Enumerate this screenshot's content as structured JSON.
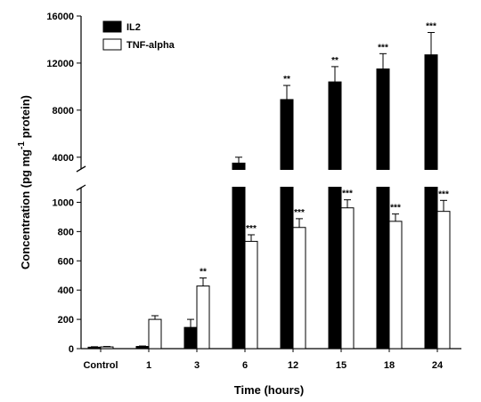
{
  "chart_data": {
    "type": "bar",
    "xlabel": "Time (hours)",
    "ylabel": "Concentration (pg mg",
    "ylabel_sup": "-1",
    "ylabel_end": " protein)",
    "categories": [
      "Control",
      "1",
      "3",
      "6",
      "12",
      "15",
      "18",
      "24"
    ],
    "y_axis_broken": true,
    "y_lower_range": [
      0,
      1100
    ],
    "y_upper_range": [
      3000,
      16000
    ],
    "y_lower_ticks": [
      "0",
      "200",
      "400",
      "600",
      "800",
      "1000"
    ],
    "y_upper_ticks": [
      "4000",
      "8000",
      "12000",
      "16000"
    ],
    "legend_position": "top-left",
    "series": [
      {
        "name": "IL2",
        "color": "#000000",
        "fill": "solid",
        "values": [
          10,
          15,
          145,
          3500,
          8900,
          10400,
          11500,
          12700
        ],
        "errors": [
          3,
          3,
          55,
          500,
          1200,
          1300,
          1300,
          1900
        ],
        "significance": [
          "",
          "",
          "",
          "",
          "**",
          "**",
          "***",
          "***"
        ]
      },
      {
        "name": "TNF-alpha",
        "color": "#ffffff",
        "fill": "open",
        "values": [
          12,
          200,
          428,
          733,
          828,
          962,
          870,
          938
        ],
        "errors": [
          3,
          25,
          55,
          45,
          60,
          55,
          50,
          75
        ],
        "significance": [
          "",
          "",
          "**",
          "***",
          "***",
          "***",
          "***",
          "***"
        ]
      }
    ]
  }
}
